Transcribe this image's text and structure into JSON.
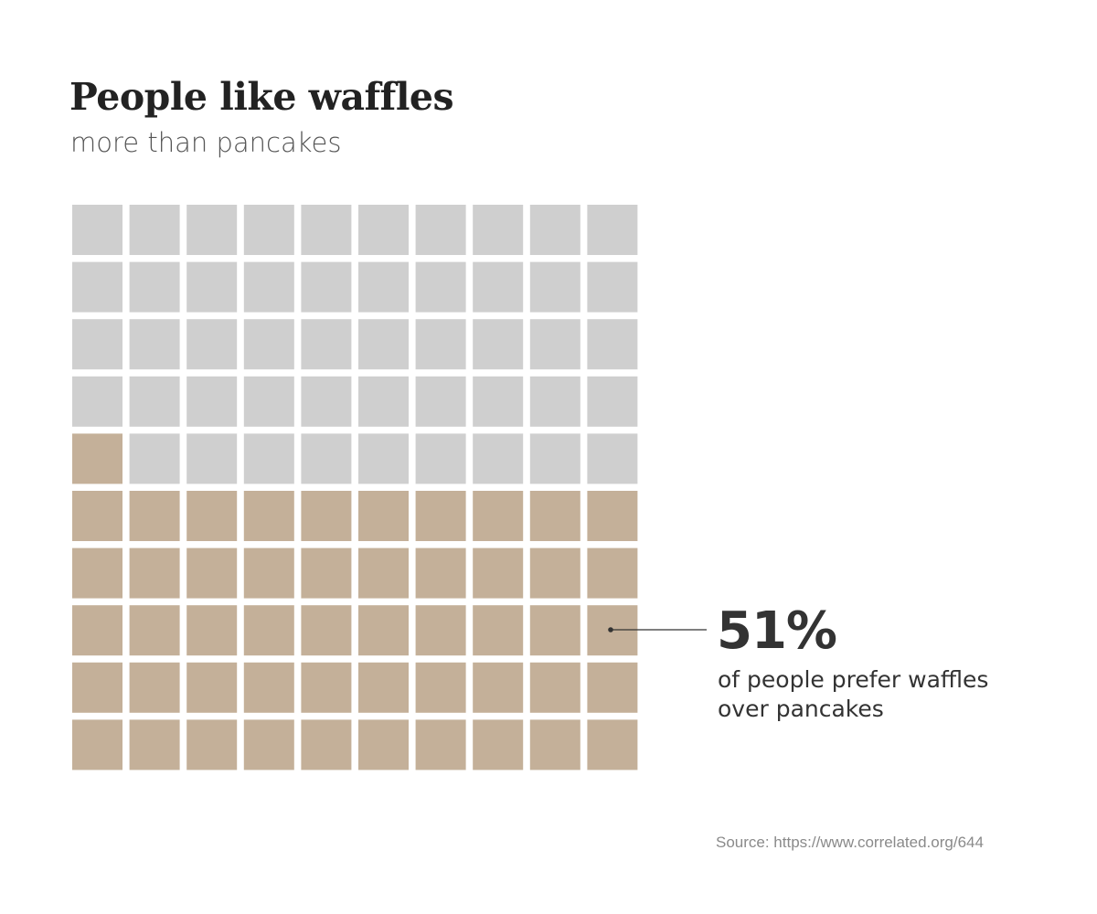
{
  "title": "People like waffles",
  "subtitle": "more than pancakes",
  "chart_data": {
    "type": "waffle",
    "total_cells": 100,
    "grid": [
      10,
      10
    ],
    "highlighted_cells": 51,
    "highlight_label": "51%",
    "highlight_description": [
      "of people prefer waffles",
      "over pancakes"
    ],
    "colors": {
      "highlight": "#c4b099",
      "rest": "#cfcfcf"
    }
  },
  "source": "Source: https://www.correlated.org/644"
}
